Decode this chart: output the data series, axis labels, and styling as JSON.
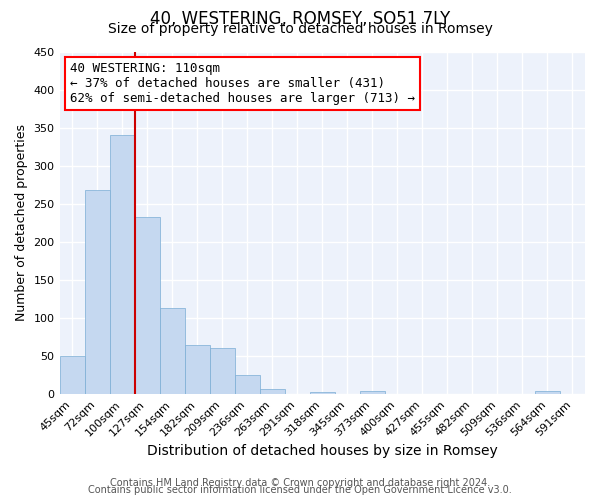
{
  "title": "40, WESTERING, ROMSEY, SO51 7LY",
  "subtitle": "Size of property relative to detached houses in Romsey",
  "xlabel": "Distribution of detached houses by size in Romsey",
  "ylabel": "Number of detached properties",
  "bar_color": "#c5d8f0",
  "bar_edge_color": "#7aadd4",
  "bin_labels": [
    "45sqm",
    "72sqm",
    "100sqm",
    "127sqm",
    "154sqm",
    "182sqm",
    "209sqm",
    "236sqm",
    "263sqm",
    "291sqm",
    "318sqm",
    "345sqm",
    "373sqm",
    "400sqm",
    "427sqm",
    "455sqm",
    "482sqm",
    "509sqm",
    "536sqm",
    "564sqm",
    "591sqm"
  ],
  "bar_heights": [
    50,
    268,
    340,
    232,
    113,
    65,
    61,
    25,
    7,
    0,
    3,
    0,
    4,
    0,
    0,
    0,
    0,
    0,
    0,
    4,
    0
  ],
  "ylim": [
    0,
    450
  ],
  "yticks": [
    0,
    50,
    100,
    150,
    200,
    250,
    300,
    350,
    400,
    450
  ],
  "red_line_x": 2.5,
  "annotation_text": "40 WESTERING: 110sqm\n← 37% of detached houses are smaller (431)\n62% of semi-detached houses are larger (713) →",
  "annotation_box_color": "white",
  "annotation_box_edge_color": "red",
  "red_line_color": "#cc0000",
  "footer_line1": "Contains HM Land Registry data © Crown copyright and database right 2024.",
  "footer_line2": "Contains public sector information licensed under the Open Government Licence v3.0.",
  "background_color": "#edf2fb",
  "grid_color": "white",
  "fig_bg_color": "white",
  "title_fontsize": 12,
  "subtitle_fontsize": 10,
  "xlabel_fontsize": 10,
  "ylabel_fontsize": 9,
  "footer_fontsize": 7,
  "tick_fontsize": 8,
  "annotation_fontsize": 9
}
